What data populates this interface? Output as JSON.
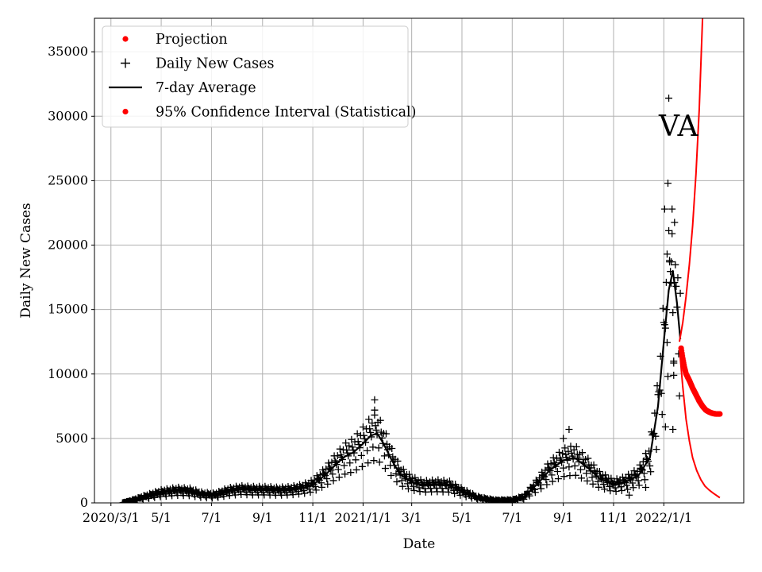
{
  "chart_data": {
    "type": "line",
    "annotation": "VA",
    "xlabel": "Date",
    "ylabel": "Daily New Cases",
    "xlim": [
      "2020-02-10",
      "2022-04-08"
    ],
    "ylim": [
      0,
      37600
    ],
    "grid": true,
    "legend_position": "top-left",
    "x_ticks": [
      {
        "date": "2020-03-01",
        "label": "2020/3/1"
      },
      {
        "date": "2020-05-01",
        "label": "5/1"
      },
      {
        "date": "2020-07-01",
        "label": "7/1"
      },
      {
        "date": "2020-09-01",
        "label": "9/1"
      },
      {
        "date": "2020-11-01",
        "label": "11/1"
      },
      {
        "date": "2021-01-01",
        "label": "2021/1/1"
      },
      {
        "date": "2021-03-01",
        "label": "3/1"
      },
      {
        "date": "2021-05-01",
        "label": "5/1"
      },
      {
        "date": "2021-07-01",
        "label": "7/1"
      },
      {
        "date": "2021-09-01",
        "label": "9/1"
      },
      {
        "date": "2021-11-01",
        "label": "11/1"
      },
      {
        "date": "2022-01-01",
        "label": "2022/1/1"
      }
    ],
    "y_ticks": [
      0,
      5000,
      10000,
      15000,
      20000,
      25000,
      30000,
      35000
    ],
    "legend": [
      {
        "label": "Projection",
        "marker": "dot",
        "color": "#ff0000"
      },
      {
        "label": "Daily New Cases",
        "marker": "plus",
        "color": "#000000"
      },
      {
        "label": "7-day Average",
        "marker": "line",
        "color": "#000000"
      },
      {
        "label": "95% Confidence Interval (Statistical)",
        "marker": "dot",
        "color": "#ff0000"
      }
    ],
    "series": [
      {
        "name": "7-day Average",
        "color": "#000000",
        "points": [
          [
            "2020-03-15",
            0
          ],
          [
            "2020-03-25",
            150
          ],
          [
            "2020-04-10",
            450
          ],
          [
            "2020-05-01",
            800
          ],
          [
            "2020-05-20",
            950
          ],
          [
            "2020-06-05",
            900
          ],
          [
            "2020-06-20",
            650
          ],
          [
            "2020-07-05",
            600
          ],
          [
            "2020-07-20",
            900
          ],
          [
            "2020-08-05",
            1050
          ],
          [
            "2020-08-20",
            1000
          ],
          [
            "2020-09-05",
            1000
          ],
          [
            "2020-09-20",
            950
          ],
          [
            "2020-10-05",
            1000
          ],
          [
            "2020-10-20",
            1150
          ],
          [
            "2020-11-01",
            1400
          ],
          [
            "2020-11-15",
            2100
          ],
          [
            "2020-12-01",
            3100
          ],
          [
            "2020-12-10",
            3600
          ],
          [
            "2020-12-20",
            3900
          ],
          [
            "2021-01-01",
            4600
          ],
          [
            "2021-01-10",
            5200
          ],
          [
            "2021-01-18",
            5400
          ],
          [
            "2021-01-25",
            4700
          ],
          [
            "2021-02-05",
            3300
          ],
          [
            "2021-02-15",
            2200
          ],
          [
            "2021-03-01",
            1600
          ],
          [
            "2021-03-15",
            1350
          ],
          [
            "2021-04-01",
            1400
          ],
          [
            "2021-04-15",
            1350
          ],
          [
            "2021-05-01",
            900
          ],
          [
            "2021-05-20",
            400
          ],
          [
            "2021-06-10",
            180
          ],
          [
            "2021-07-01",
            200
          ],
          [
            "2021-07-15",
            450
          ],
          [
            "2021-08-01",
            1500
          ],
          [
            "2021-08-15",
            2500
          ],
          [
            "2021-09-01",
            3300
          ],
          [
            "2021-09-15",
            3500
          ],
          [
            "2021-10-01",
            2700
          ],
          [
            "2021-10-15",
            1900
          ],
          [
            "2021-11-01",
            1400
          ],
          [
            "2021-11-15",
            1600
          ],
          [
            "2021-12-01",
            2100
          ],
          [
            "2021-12-15",
            3500
          ],
          [
            "2021-12-25",
            7500
          ],
          [
            "2022-01-01",
            12500
          ],
          [
            "2022-01-07",
            16500
          ],
          [
            "2022-01-12",
            18000
          ],
          [
            "2022-01-17",
            15500
          ],
          [
            "2022-01-21",
            12700
          ]
        ]
      },
      {
        "name": "Projection",
        "color": "#ff0000",
        "points": [
          [
            "2022-01-22",
            12000
          ],
          [
            "2022-01-24",
            11200
          ],
          [
            "2022-01-26",
            10500
          ],
          [
            "2022-01-28",
            10000
          ],
          [
            "2022-02-01",
            9500
          ],
          [
            "2022-02-05",
            8900
          ],
          [
            "2022-02-09",
            8400
          ],
          [
            "2022-02-13",
            7900
          ],
          [
            "2022-02-17",
            7500
          ],
          [
            "2022-02-21",
            7200
          ],
          [
            "2022-02-25",
            7050
          ],
          [
            "2022-03-01",
            6950
          ],
          [
            "2022-03-05",
            6900
          ],
          [
            "2022-03-10",
            6900
          ]
        ]
      },
      {
        "name": "95% CI upper",
        "color": "#ff0000",
        "points": [
          [
            "2022-01-20",
            12500
          ],
          [
            "2022-01-24",
            14000
          ],
          [
            "2022-01-28",
            16000
          ],
          [
            "2022-02-01",
            18500
          ],
          [
            "2022-02-05",
            21500
          ],
          [
            "2022-02-09",
            25500
          ],
          [
            "2022-02-13",
            30500
          ],
          [
            "2022-02-17",
            37600
          ]
        ]
      },
      {
        "name": "95% CI lower",
        "color": "#ff0000",
        "points": [
          [
            "2022-01-20",
            12000
          ],
          [
            "2022-01-24",
            9000
          ],
          [
            "2022-01-28",
            6500
          ],
          [
            "2022-02-01",
            4800
          ],
          [
            "2022-02-05",
            3500
          ],
          [
            "2022-02-10",
            2500
          ],
          [
            "2022-02-15",
            1800
          ],
          [
            "2022-02-20",
            1300
          ],
          [
            "2022-02-25",
            1000
          ],
          [
            "2022-03-02",
            750
          ],
          [
            "2022-03-10",
            400
          ]
        ]
      }
    ],
    "daily_new_cases_notable": [
      [
        "2021-01-15",
        8000
      ],
      [
        "2021-01-15",
        7200
      ],
      [
        "2022-01-02",
        22800
      ],
      [
        "2022-01-05",
        19300
      ],
      [
        "2022-01-06",
        24800
      ],
      [
        "2022-01-07",
        31400
      ],
      [
        "2022-01-08",
        18700
      ],
      [
        "2022-01-10",
        18700
      ],
      [
        "2022-01-11",
        22800
      ],
      [
        "2022-01-14",
        17100
      ],
      [
        "2022-01-04",
        15000
      ],
      [
        "2022-01-13",
        11000
      ],
      [
        "2022-01-13",
        9900
      ],
      [
        "2022-01-12",
        5700
      ],
      [
        "2022-01-03",
        5900
      ],
      [
        "2021-09-08",
        5700
      ],
      [
        "2021-09-01",
        5000
      ],
      [
        "2021-11-20",
        600
      ],
      [
        "2021-12-10",
        1200
      ]
    ]
  }
}
